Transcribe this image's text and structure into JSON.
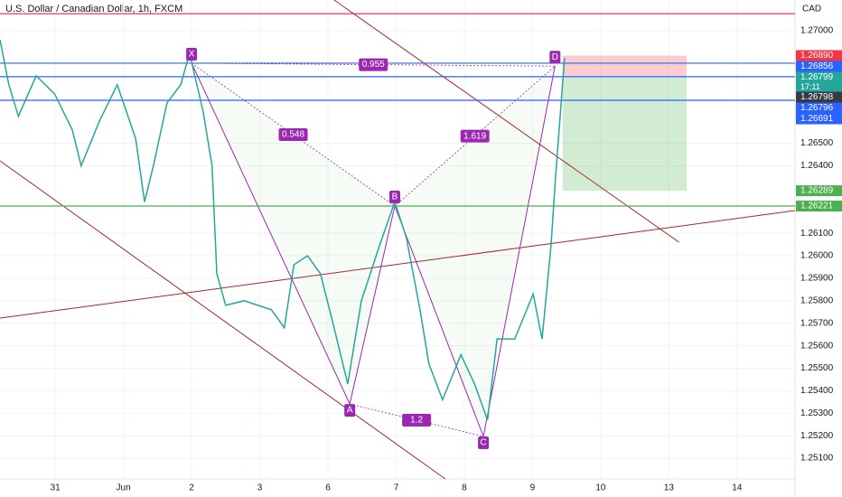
{
  "chart_data": {
    "type": "line",
    "title": "U.S. Dollar / Canadian Dollar, 1h, FXCM",
    "currency": "CAD",
    "countdown": "17:11",
    "color": "#26a69a",
    "x": [
      -0.81,
      -0.68,
      -0.54,
      -0.28,
      -0.01,
      0.25,
      0.38,
      0.65,
      0.91,
      1.18,
      1.31,
      1.44,
      1.64,
      1.84,
      1.97,
      2.17,
      2.3,
      2.37,
      2.5,
      2.77,
      3.17,
      3.36,
      3.5,
      3.7,
      3.89,
      4.09,
      4.29,
      4.49,
      4.75,
      4.98,
      5.15,
      5.35,
      5.48,
      5.68,
      5.95,
      6.15,
      6.34,
      6.48,
      6.74,
      7.01,
      7.14,
      7.27,
      7.34,
      7.4,
      7.47
    ],
    "values": [
      1.2696,
      1.2676,
      1.2662,
      1.268,
      1.2672,
      1.2656,
      1.264,
      1.266,
      1.2676,
      1.2652,
      1.2624,
      1.264,
      1.2668,
      1.2676,
      1.269,
      1.2664,
      1.264,
      1.2592,
      1.2578,
      1.258,
      1.2576,
      1.2568,
      1.2596,
      1.26,
      1.2592,
      1.2568,
      1.2543,
      1.258,
      1.2604,
      1.2624,
      1.2608,
      1.2576,
      1.2552,
      1.2536,
      1.2556,
      1.2543,
      1.2527,
      1.2563,
      1.2563,
      1.2583,
      1.2563,
      1.2604,
      1.2636,
      1.266,
      1.2688
    ],
    "xlim": [
      -0.81,
      10.85
    ],
    "ylim": [
      1.25008,
      1.27137
    ],
    "xticks": [
      {
        "value": 0,
        "label": "31"
      },
      {
        "value": 1,
        "label": "Jun"
      },
      2,
      3,
      {
        "value": 4,
        "label": "6"
      },
      {
        "value": 5,
        "label": "7"
      },
      {
        "value": 6,
        "label": "8"
      },
      {
        "value": 7,
        "label": "9"
      },
      {
        "value": 8,
        "label": "10"
      },
      {
        "value": 9,
        "label": "13"
      },
      {
        "value": 10,
        "label": "14"
      }
    ],
    "yticks": [
      {
        "value": 1.27,
        "label": "1.27000"
      },
      {
        "value": 1.265,
        "label": "1.26500"
      },
      {
        "value": 1.264,
        "label": "1.26400"
      },
      {
        "value": 1.261,
        "label": "1.26100"
      },
      {
        "value": 1.26,
        "label": "1.26000"
      },
      {
        "value": 1.259,
        "label": "1.25900"
      },
      {
        "value": 1.258,
        "label": "1.25800"
      },
      {
        "value": 1.257,
        "label": "1.25700"
      },
      {
        "value": 1.256,
        "label": "1.25600"
      },
      {
        "value": 1.255,
        "label": "1.25500"
      },
      {
        "value": 1.254,
        "label": "1.25400"
      },
      {
        "value": 1.253,
        "label": "1.25300"
      },
      {
        "value": 1.252,
        "label": "1.25200"
      },
      {
        "value": 1.251,
        "label": "1.25100"
      }
    ],
    "hlines": [
      {
        "value": 1.27076,
        "color": "#e91e63"
      },
      {
        "value": 1.26856,
        "color": "#2962ff"
      },
      {
        "value": 1.26796,
        "color": "#2962ff"
      },
      {
        "value": 1.26691,
        "color": "#2962ff"
      },
      {
        "value": 1.26221,
        "color": "#4caf50"
      }
    ],
    "price_tags": [
      {
        "value": 1.2689,
        "label": "1.26890",
        "color": "#f23645"
      },
      {
        "value": 1.26856,
        "label": "1.26856",
        "color": "#2962ff"
      },
      {
        "value": 1.26799,
        "label": "1.26799",
        "color": "#26a69a"
      },
      {
        "value": 1.26798,
        "label": "1.26798",
        "color": "#363a45"
      },
      {
        "value": 1.26796,
        "label": "1.26796",
        "color": "#2962ff"
      },
      {
        "value": 1.26691,
        "label": "1.26691",
        "color": "#2962ff"
      },
      {
        "value": 1.26289,
        "label": "1.26289",
        "color": "#4caf50"
      },
      {
        "value": 1.26221,
        "label": "1.26221",
        "color": "#4caf50"
      }
    ],
    "pattern": [
      {
        "label": "X",
        "x": 2.0,
        "y": 1.26856
      },
      {
        "label": "A",
        "x": 4.32,
        "y": 1.25341
      },
      {
        "label": "B",
        "x": 4.98,
        "y": 1.26221
      },
      {
        "label": "C",
        "x": 6.28,
        "y": 1.25197
      },
      {
        "label": "D",
        "x": 7.33,
        "y": 1.26843
      }
    ],
    "ratios": [
      0.548,
      1.619,
      0.955,
      1.2
    ],
    "trendlines": [
      {
        "x": [
          -0.81,
          5.72
        ],
        "y": [
          1.26422,
          1.25008
        ]
      },
      {
        "x": [
          4.09,
          9.15
        ],
        "y": [
          1.27137,
          1.2606
        ]
      },
      {
        "x": [
          -0.81,
          10.85
        ],
        "y": [
          1.25723,
          1.26201
        ]
      }
    ],
    "position": {
      "x": [
        7.44,
        9.26
      ],
      "stop": 1.2689,
      "entry": 1.26799,
      "target": 1.26289
    }
  }
}
